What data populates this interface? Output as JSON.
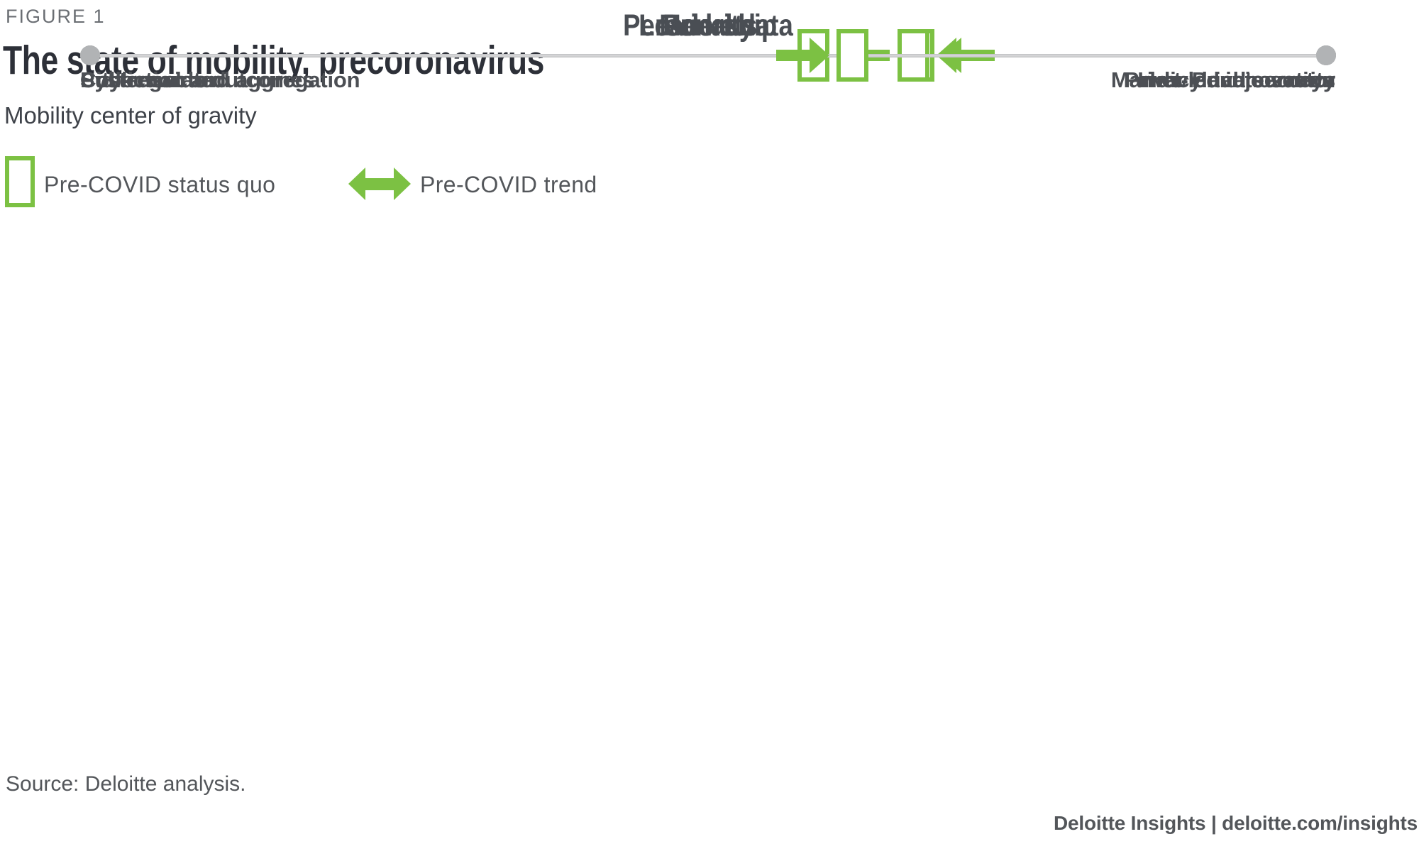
{
  "figure": {
    "eyebrow": "FIGURE 1",
    "title": "The state of mobility, precoronavirus",
    "subtitle": "Mobility center of gravity"
  },
  "legend": {
    "status_quo_label": "Pre-COVID status quo",
    "trend_label": "Pre-COVID trend"
  },
  "colors": {
    "accent_green": "#7CC143",
    "track_gray": "#C7C8C9",
    "endpoint_dot_gray": "#B1B3B5",
    "title_dark": "#2D3038",
    "body_gray": "#53565A"
  },
  "chart_data": {
    "type": "diverging-scale",
    "title": "The state of mobility, precoronavirus",
    "subtitle": "Mobility center of gravity",
    "legend": [
      "Pre-COVID status quo",
      "Pre-COVID trend"
    ],
    "scales": [
      {
        "title": "Leadership",
        "left_label": "Public sector",
        "right_label": "Private sector",
        "marker_pct": 67.0,
        "trend": "left"
      },
      {
        "title": "Priority",
        "left_label": "Systemwide outcomes",
        "right_label": "Individual journeys",
        "marker_pct": 58.5,
        "trend": "left"
      },
      {
        "title": "Markets",
        "left_label": "City-regulated",
        "right_label": "Market-led innovation",
        "marker_pct": 66.6,
        "trend": "left"
      },
      {
        "title": "Personal data",
        "left_label": "Collection and aggregation",
        "right_label": "Privacy and security",
        "marker_pct": 61.7,
        "trend": "right"
      }
    ]
  },
  "footer": {
    "source": "Source: Deloitte analysis.",
    "branding": "Deloitte Insights | deloitte.com/insights"
  }
}
